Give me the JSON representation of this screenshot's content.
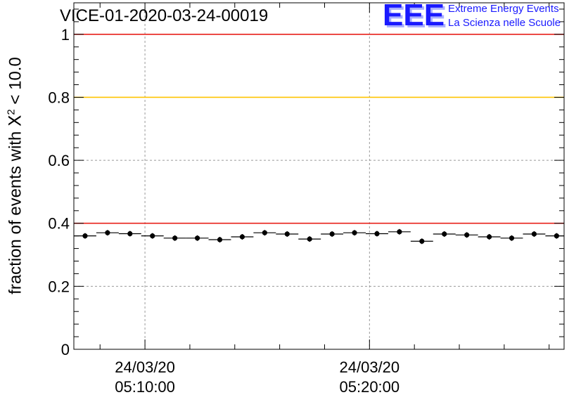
{
  "header": {
    "title": "VICE-01-2020-03-24-00019",
    "logo_text": "EEE",
    "logo_line1": "Extreme Energy Events",
    "logo_line2": "La Scienza nelle Scuole"
  },
  "chart_data": {
    "type": "scatter",
    "title": "VICE-01-2020-03-24-00019",
    "ylabel_prefix": "fraction of events with ",
    "ylabel_symbol": "X",
    "ylabel_sup": "2",
    "ylabel_suffix": " < 10.0",
    "xlabel": "",
    "ylim": [
      0,
      1.1
    ],
    "xlim": [
      "05:06:50",
      "05:28:40"
    ],
    "grid": true,
    "yticks": [
      {
        "value": 0,
        "label": "0"
      },
      {
        "value": 0.2,
        "label": "0.2"
      },
      {
        "value": 0.4,
        "label": "0.4"
      },
      {
        "value": 0.6,
        "label": "0.6"
      },
      {
        "value": 0.8,
        "label": "0.8"
      },
      {
        "value": 1.0,
        "label": "1"
      }
    ],
    "xticks": [
      {
        "time": "05:10:00",
        "date_label": "24/03/20",
        "time_label": "05:10:00"
      },
      {
        "time": "05:20:00",
        "date_label": "24/03/20",
        "time_label": "05:20:00"
      }
    ],
    "reference_lines": [
      {
        "y": 1.0,
        "color": "#e8201a"
      },
      {
        "y": 0.8,
        "color": "#ffc400"
      },
      {
        "y": 0.4,
        "color": "#e8201a"
      }
    ],
    "bin_width_minutes": 1,
    "series": [
      {
        "x": [
          "05:07:20",
          "05:08:20",
          "05:09:20",
          "05:10:20",
          "05:11:20",
          "05:12:20",
          "05:13:20",
          "05:14:20",
          "05:15:20",
          "05:16:20",
          "05:17:20",
          "05:18:20",
          "05:19:20",
          "05:20:20",
          "05:21:20",
          "05:22:20",
          "05:23:20",
          "05:24:20",
          "05:25:20",
          "05:26:20",
          "05:27:20",
          "05:28:20"
        ],
        "values": [
          0.36,
          0.37,
          0.367,
          0.36,
          0.353,
          0.353,
          0.348,
          0.357,
          0.37,
          0.366,
          0.35,
          0.366,
          0.37,
          0.367,
          0.373,
          0.343,
          0.366,
          0.363,
          0.357,
          0.353,
          0.366,
          0.36
        ]
      }
    ]
  }
}
